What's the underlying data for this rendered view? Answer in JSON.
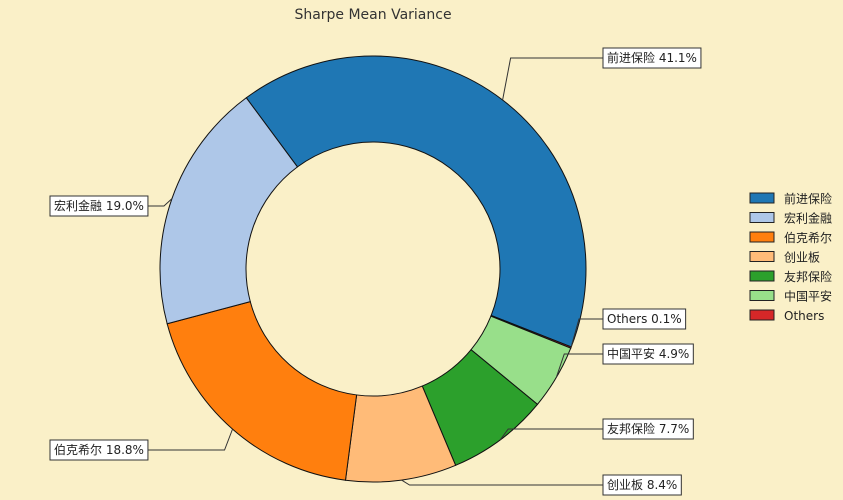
{
  "chart_data": {
    "type": "pie",
    "title": "Sharpe Mean Variance",
    "donut": true,
    "labels": [
      "前进保险",
      "Others",
      "中国平安",
      "友邦保险",
      "创业板",
      "伯克希尔",
      "宏利金融"
    ],
    "values": [
      41.1,
      0.1,
      4.9,
      7.7,
      8.4,
      18.8,
      19.0
    ],
    "value_labels": [
      "前进保险 41.1%",
      "Others 0.1%",
      "中国平安 4.9%",
      "友邦保险 7.7%",
      "创业板 8.4%",
      "伯克希尔 18.8%",
      "宏利金融 19.0%"
    ],
    "colors": [
      "#1f77b4",
      "#d62728",
      "#98df8a",
      "#2ca02c",
      "#ffbb78",
      "#ff7f0e",
      "#aec7e8"
    ],
    "legend": {
      "position": "right",
      "entries": [
        {
          "label": "前进保险",
          "color": "#1f77b4"
        },
        {
          "label": "宏利金融",
          "color": "#aec7e8"
        },
        {
          "label": "伯克希尔",
          "color": "#ff7f0e"
        },
        {
          "label": "创业板",
          "color": "#ffbb78"
        },
        {
          "label": "友邦保险",
          "color": "#2ca02c"
        },
        {
          "label": "中国平安",
          "color": "#98df8a"
        },
        {
          "label": "Others",
          "color": "#d62728"
        }
      ]
    }
  }
}
